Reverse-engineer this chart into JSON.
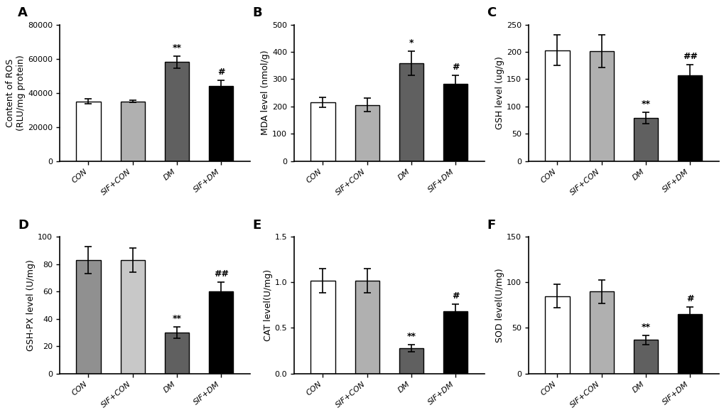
{
  "panels": [
    {
      "label": "A",
      "ylabel": "Content of ROS\n(RLU/mg protein)",
      "ylim": [
        0,
        80000
      ],
      "yticks": [
        0,
        20000,
        40000,
        60000,
        80000
      ],
      "values": [
        35000,
        35000,
        58000,
        44000
      ],
      "errors": [
        1500,
        800,
        3500,
        3500
      ],
      "sig_labels": [
        "",
        "",
        "**",
        "#"
      ],
      "colors": [
        "white",
        "#b0b0b0",
        "#606060",
        "black"
      ]
    },
    {
      "label": "B",
      "ylabel": "MDA level (nmol/g)",
      "ylim": [
        0,
        500
      ],
      "yticks": [
        0,
        100,
        200,
        300,
        400,
        500
      ],
      "values": [
        215,
        205,
        358,
        282
      ],
      "errors": [
        18,
        25,
        45,
        32
      ],
      "sig_labels": [
        "",
        "",
        "*",
        "#"
      ],
      "colors": [
        "white",
        "#b0b0b0",
        "#606060",
        "black"
      ]
    },
    {
      "label": "C",
      "ylabel": "GSH level (ug/g)",
      "ylim": [
        0,
        250
      ],
      "yticks": [
        0,
        50,
        100,
        150,
        200,
        250
      ],
      "values": [
        203,
        201,
        79,
        157
      ],
      "errors": [
        28,
        30,
        10,
        20
      ],
      "sig_labels": [
        "",
        "",
        "**",
        "##"
      ],
      "colors": [
        "white",
        "#b0b0b0",
        "#606060",
        "black"
      ]
    },
    {
      "label": "D",
      "ylabel": "GSH-PX level (U/mg)",
      "ylim": [
        0,
        100
      ],
      "yticks": [
        0,
        20,
        40,
        60,
        80,
        100
      ],
      "values": [
        83,
        83,
        30,
        60
      ],
      "errors": [
        10,
        9,
        4,
        7
      ],
      "sig_labels": [
        "",
        "",
        "**",
        "##"
      ],
      "colors": [
        "#909090",
        "#c8c8c8",
        "#606060",
        "black"
      ]
    },
    {
      "label": "E",
      "ylabel": "CAT level(U/mg)",
      "ylim": [
        0,
        1.5
      ],
      "yticks": [
        0.0,
        0.5,
        1.0,
        1.5
      ],
      "values": [
        1.02,
        1.02,
        0.28,
        0.68
      ],
      "errors": [
        0.13,
        0.13,
        0.04,
        0.08
      ],
      "sig_labels": [
        "",
        "",
        "**",
        "#"
      ],
      "colors": [
        "white",
        "#b0b0b0",
        "#606060",
        "black"
      ]
    },
    {
      "label": "F",
      "ylabel": "SOD level(U/mg)",
      "ylim": [
        0,
        150
      ],
      "yticks": [
        0,
        50,
        100,
        150
      ],
      "values": [
        85,
        90,
        37,
        65
      ],
      "errors": [
        13,
        13,
        5,
        8
      ],
      "sig_labels": [
        "",
        "",
        "**",
        "#"
      ],
      "colors": [
        "white",
        "#b0b0b0",
        "#606060",
        "black"
      ]
    }
  ],
  "categories": [
    "CON",
    "SIF+CON",
    "DM",
    "SIF+DM"
  ],
  "bar_width": 0.55,
  "edgecolor": "black",
  "sig_fontsize": 9,
  "ylabel_fontsize": 9,
  "tick_fontsize": 8,
  "panel_label_fontsize": 13
}
